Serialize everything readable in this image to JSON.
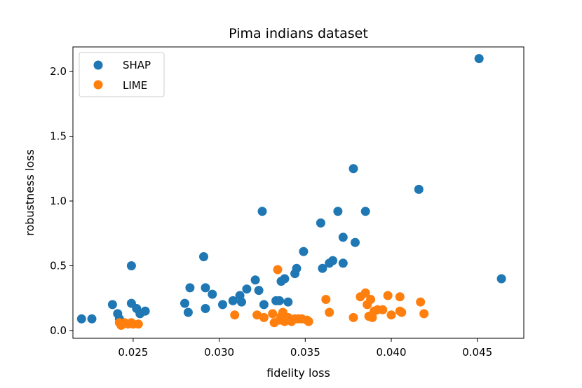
{
  "chart_data": {
    "type": "scatter",
    "title": "Pima indians dataset",
    "xlabel": "fidelity loss",
    "ylabel": "robustness loss",
    "xlim": [
      0.0215,
      0.0477
    ],
    "ylim": [
      -0.06,
      2.19
    ],
    "xticks": [
      0.025,
      0.03,
      0.035,
      0.04,
      0.045
    ],
    "xtick_labels": [
      "0.025",
      "0.030",
      "0.035",
      "0.040",
      "0.045"
    ],
    "yticks": [
      0.0,
      0.5,
      1.0,
      1.5,
      2.0
    ],
    "ytick_labels": [
      "0.0",
      "0.5",
      "1.0",
      "1.5",
      "2.0"
    ],
    "grid": false,
    "legend_position": "top-left",
    "series": [
      {
        "name": "SHAP",
        "color": "#1f77b4",
        "points": [
          [
            0.022,
            0.09
          ],
          [
            0.0226,
            0.09
          ],
          [
            0.0238,
            0.2
          ],
          [
            0.0241,
            0.13
          ],
          [
            0.0242,
            0.09
          ],
          [
            0.0249,
            0.5
          ],
          [
            0.0249,
            0.21
          ],
          [
            0.0252,
            0.17
          ],
          [
            0.0254,
            0.13
          ],
          [
            0.0257,
            0.15
          ],
          [
            0.028,
            0.21
          ],
          [
            0.0282,
            0.14
          ],
          [
            0.0283,
            0.33
          ],
          [
            0.0291,
            0.57
          ],
          [
            0.0292,
            0.17
          ],
          [
            0.0292,
            0.33
          ],
          [
            0.0296,
            0.28
          ],
          [
            0.0302,
            0.2
          ],
          [
            0.0308,
            0.23
          ],
          [
            0.0312,
            0.27
          ],
          [
            0.0313,
            0.22
          ],
          [
            0.0316,
            0.32
          ],
          [
            0.0321,
            0.39
          ],
          [
            0.0323,
            0.31
          ],
          [
            0.0325,
            0.92
          ],
          [
            0.0326,
            0.2
          ],
          [
            0.0333,
            0.23
          ],
          [
            0.0335,
            0.23
          ],
          [
            0.0336,
            0.38
          ],
          [
            0.0338,
            0.4
          ],
          [
            0.034,
            0.22
          ],
          [
            0.0344,
            0.44
          ],
          [
            0.0345,
            0.48
          ],
          [
            0.0349,
            0.61
          ],
          [
            0.0359,
            0.83
          ],
          [
            0.036,
            0.48
          ],
          [
            0.0364,
            0.52
          ],
          [
            0.0366,
            0.54
          ],
          [
            0.0369,
            0.92
          ],
          [
            0.0372,
            0.72
          ],
          [
            0.0372,
            0.52
          ],
          [
            0.0378,
            1.25
          ],
          [
            0.0379,
            0.68
          ],
          [
            0.0385,
            0.92
          ],
          [
            0.0416,
            1.09
          ],
          [
            0.0451,
            2.1
          ],
          [
            0.0464,
            0.4
          ]
        ]
      },
      {
        "name": "LIME",
        "color": "#ff7f0e",
        "points": [
          [
            0.0242,
            0.06
          ],
          [
            0.0243,
            0.04
          ],
          [
            0.0245,
            0.06
          ],
          [
            0.0247,
            0.05
          ],
          [
            0.0249,
            0.06
          ],
          [
            0.025,
            0.05
          ],
          [
            0.0253,
            0.05
          ],
          [
            0.0309,
            0.12
          ],
          [
            0.0322,
            0.12
          ],
          [
            0.0326,
            0.1
          ],
          [
            0.0331,
            0.13
          ],
          [
            0.0332,
            0.06
          ],
          [
            0.0334,
            0.47
          ],
          [
            0.0335,
            0.08
          ],
          [
            0.0336,
            0.11
          ],
          [
            0.0337,
            0.14
          ],
          [
            0.0338,
            0.07
          ],
          [
            0.034,
            0.1
          ],
          [
            0.0342,
            0.07
          ],
          [
            0.0344,
            0.09
          ],
          [
            0.0346,
            0.09
          ],
          [
            0.0348,
            0.09
          ],
          [
            0.0351,
            0.08
          ],
          [
            0.0352,
            0.07
          ],
          [
            0.0362,
            0.24
          ],
          [
            0.0364,
            0.14
          ],
          [
            0.0378,
            0.1
          ],
          [
            0.0382,
            0.26
          ],
          [
            0.0385,
            0.29
          ],
          [
            0.0386,
            0.2
          ],
          [
            0.0387,
            0.11
          ],
          [
            0.0388,
            0.24
          ],
          [
            0.0389,
            0.1
          ],
          [
            0.039,
            0.15
          ],
          [
            0.0392,
            0.16
          ],
          [
            0.0395,
            0.16
          ],
          [
            0.0398,
            0.27
          ],
          [
            0.04,
            0.12
          ],
          [
            0.0405,
            0.26
          ],
          [
            0.0405,
            0.15
          ],
          [
            0.0406,
            0.14
          ],
          [
            0.0417,
            0.22
          ],
          [
            0.0419,
            0.13
          ]
        ]
      }
    ]
  }
}
